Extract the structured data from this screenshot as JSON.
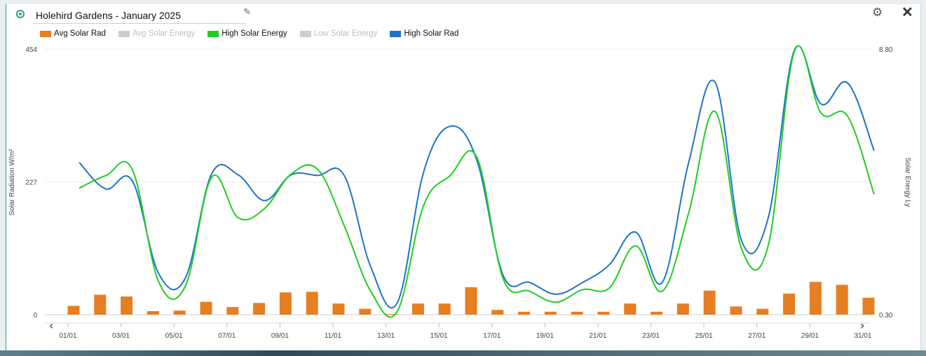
{
  "header": {
    "title": "Holehird Gardens - January 2025",
    "status_icon": "status-dot-icon",
    "edit_icon": "pencil-icon",
    "settings_icon": "gear-icon",
    "close_icon": "close-icon",
    "edit_glyph": "✎",
    "settings_glyph": "⚙",
    "close_glyph": "✕"
  },
  "nav": {
    "prev_glyph": "‹",
    "next_glyph": "›"
  },
  "legend": [
    {
      "label": "Avg Solar Rad",
      "color": "#e67e22",
      "active": true
    },
    {
      "label": "Avg Solar Energy",
      "color": "#cccccc",
      "active": false
    },
    {
      "label": "High Solar Energy",
      "color": "#22cc22",
      "active": true
    },
    {
      "label": "Low Solar Energy",
      "color": "#cccccc",
      "active": false
    },
    {
      "label": "High Solar Rad",
      "color": "#1e73c8",
      "active": true
    }
  ],
  "chart_data": {
    "type": "bar+line",
    "categories": [
      "01/01",
      "02/01",
      "03/01",
      "04/01",
      "05/01",
      "06/01",
      "07/01",
      "08/01",
      "09/01",
      "10/01",
      "11/01",
      "12/01",
      "13/01",
      "14/01",
      "15/01",
      "16/01",
      "17/01",
      "18/01",
      "19/01",
      "20/01",
      "21/01",
      "22/01",
      "23/01",
      "24/01",
      "25/01",
      "26/01",
      "27/01",
      "28/01",
      "29/01",
      "30/01",
      "31/01"
    ],
    "x_tick_labels": [
      "01/01",
      "03/01",
      "05/01",
      "07/01",
      "09/01",
      "11/01",
      "13/01",
      "15/01",
      "17/01",
      "19/01",
      "21/01",
      "23/01",
      "25/01",
      "27/01",
      "29/01",
      "31/01"
    ],
    "ylabel_left": "Solar Radiation W/m²",
    "ylabel_right": "Solar Energy Ly",
    "ylim_left": [
      0,
      454
    ],
    "ylim_right": [
      0.3,
      8.8
    ],
    "yticks_left": [
      "0",
      "227",
      "454"
    ],
    "yticks_right": [
      "0.30",
      "8.80"
    ],
    "grid": true,
    "series": [
      {
        "name": "Avg Solar Rad",
        "type": "bar",
        "axis": "left",
        "color": "#e67e22",
        "values": [
          15,
          34,
          31,
          6,
          7,
          22,
          13,
          20,
          38,
          39,
          19,
          10,
          1,
          19,
          19,
          47,
          8,
          5,
          5,
          5,
          5,
          19,
          5,
          19,
          41,
          14,
          10,
          36,
          56,
          51,
          29
        ]
      },
      {
        "name": "High Solar Rad",
        "type": "line",
        "axis": "left",
        "color": "#1e73c8",
        "values": [
          260,
          215,
          229,
          70,
          62,
          241,
          239,
          195,
          239,
          238,
          238,
          82,
          20,
          244,
          322,
          265,
          67,
          55,
          35,
          55,
          85,
          141,
          55,
          260,
          397,
          126,
          165,
          453,
          360,
          396,
          280
        ]
      },
      {
        "name": "High Solar Energy",
        "type": "line",
        "axis": "right",
        "color": "#22cc22",
        "values": [
          4.35,
          4.75,
          4.95,
          1.35,
          1.2,
          4.7,
          3.4,
          3.7,
          4.8,
          4.95,
          3.15,
          1.05,
          0.4,
          3.8,
          4.75,
          5.35,
          1.45,
          1.05,
          0.7,
          1.1,
          1.15,
          2.5,
          1.05,
          3.55,
          6.8,
          2.4,
          2.5,
          8.75,
          6.75,
          6.65,
          4.15
        ]
      }
    ]
  }
}
